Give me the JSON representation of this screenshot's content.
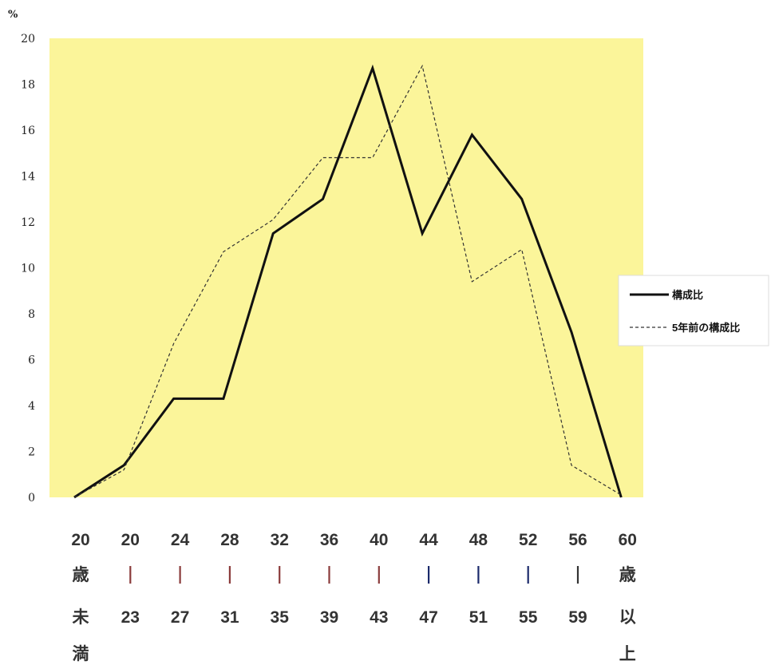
{
  "chart_data": {
    "type": "line",
    "unit_label": "%",
    "ylim": [
      0,
      20
    ],
    "yticks": [
      "0",
      "2",
      "4",
      "6",
      "8",
      "10",
      "12",
      "14",
      "16",
      "18",
      "20"
    ],
    "categories": [
      [
        "20",
        "歳",
        "未",
        "満"
      ],
      [
        "20",
        "|",
        "23"
      ],
      [
        "24",
        "|",
        "27"
      ],
      [
        "28",
        "|",
        "31"
      ],
      [
        "32",
        "|",
        "35"
      ],
      [
        "36",
        "|",
        "39"
      ],
      [
        "40",
        "|",
        "43"
      ],
      [
        "44",
        "|",
        "47"
      ],
      [
        "48",
        "|",
        "51"
      ],
      [
        "52",
        "|",
        "55"
      ],
      [
        "56",
        "|",
        "59"
      ],
      [
        "60",
        "歳",
        "以",
        "上"
      ]
    ],
    "series": [
      {
        "name": "構成比",
        "style": "solid",
        "color": "#111111",
        "values": [
          0,
          1.4,
          4.3,
          4.3,
          11.5,
          13.0,
          18.7,
          11.5,
          15.8,
          13.0,
          7.2,
          0
        ]
      },
      {
        "name": "5年前の構成比",
        "style": "dashed",
        "color": "#333333",
        "values": [
          0,
          1.2,
          6.7,
          10.7,
          12.1,
          14.8,
          14.8,
          18.8,
          9.4,
          10.8,
          1.4,
          0.1
        ]
      }
    ],
    "legend_position": "right",
    "background_color": "#fbf59a",
    "grid": false
  }
}
